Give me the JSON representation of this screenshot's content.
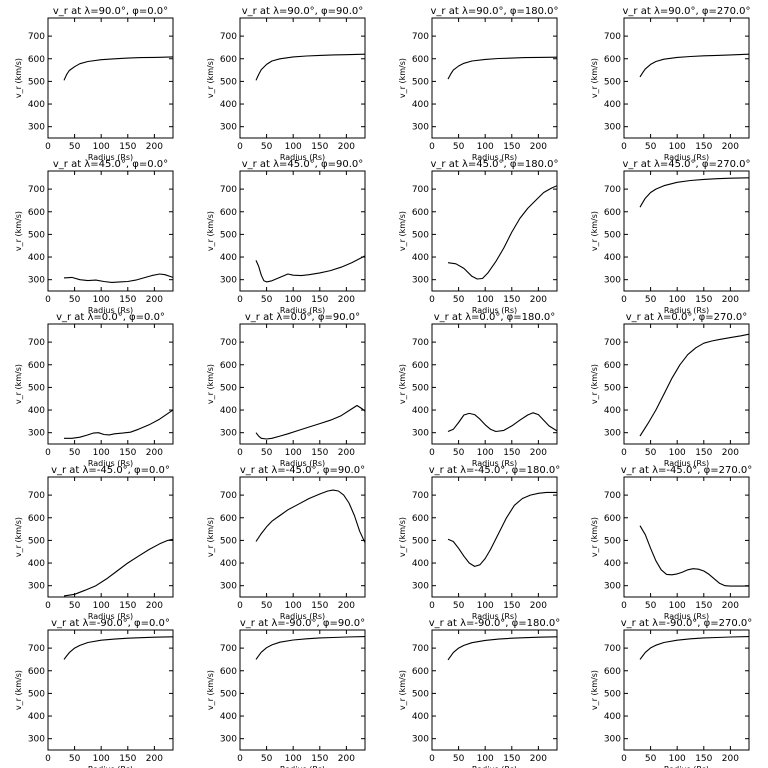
{
  "chart_data": [
    {
      "type": "line",
      "title": "v_r at λ=90.0°, φ=0.0°",
      "xlabel": "Radius (Rs)",
      "ylabel": "v_r (km/s)",
      "xlim": [
        0,
        235
      ],
      "ylim": [
        250,
        780
      ],
      "x": [
        30,
        35,
        40,
        50,
        60,
        75,
        100,
        125,
        150,
        175,
        200,
        235
      ],
      "series": [
        {
          "values": [
            505,
            530,
            548,
            565,
            578,
            588,
            596,
            600,
            603,
            605,
            606,
            608
          ]
        }
      ]
    },
    {
      "type": "line",
      "title": "v_r at λ=90.0°, φ=90.0°",
      "xlabel": "Radius (Rs)",
      "ylabel": "v_r (km/s)",
      "xlim": [
        0,
        235
      ],
      "ylim": [
        250,
        780
      ],
      "x": [
        30,
        35,
        40,
        50,
        60,
        75,
        100,
        125,
        150,
        175,
        200,
        235
      ],
      "series": [
        {
          "values": [
            505,
            530,
            552,
            575,
            590,
            600,
            608,
            612,
            615,
            617,
            618,
            620
          ]
        }
      ]
    },
    {
      "type": "line",
      "title": "v_r at λ=90.0°, φ=180.0°",
      "xlabel": "Radius (Rs)",
      "ylabel": "v_r (km/s)",
      "xlim": [
        0,
        235
      ],
      "ylim": [
        250,
        780
      ],
      "x": [
        30,
        35,
        40,
        50,
        60,
        75,
        100,
        125,
        150,
        175,
        200,
        235
      ],
      "series": [
        {
          "values": [
            510,
            532,
            550,
            568,
            580,
            590,
            597,
            601,
            603,
            605,
            606,
            607
          ]
        }
      ]
    },
    {
      "type": "line",
      "title": "v_r at λ=90.0°, φ=270.0°",
      "xlabel": "Radius (Rs)",
      "ylabel": "v_r (km/s)",
      "xlim": [
        0,
        235
      ],
      "ylim": [
        250,
        780
      ],
      "x": [
        30,
        35,
        40,
        50,
        60,
        75,
        100,
        125,
        150,
        175,
        200,
        235
      ],
      "series": [
        {
          "values": [
            520,
            538,
            555,
            575,
            588,
            598,
            606,
            610,
            613,
            615,
            617,
            620
          ]
        }
      ]
    },
    {
      "type": "line",
      "title": "v_r at λ=45.0°, φ=0.0°",
      "xlabel": "Radius (Rs)",
      "ylabel": "v_r (km/s)",
      "xlim": [
        0,
        235
      ],
      "ylim": [
        250,
        780
      ],
      "x": [
        30,
        45,
        60,
        75,
        90,
        105,
        120,
        135,
        150,
        165,
        180,
        195,
        210,
        220,
        235
      ],
      "series": [
        {
          "values": [
            308,
            310,
            300,
            296,
            298,
            292,
            288,
            290,
            292,
            298,
            308,
            318,
            325,
            322,
            310
          ]
        }
      ]
    },
    {
      "type": "line",
      "title": "v_r at λ=45.0°, φ=90.0°",
      "xlabel": "Radius (Rs)",
      "ylabel": "v_r (km/s)",
      "xlim": [
        0,
        235
      ],
      "ylim": [
        250,
        780
      ],
      "x": [
        30,
        35,
        40,
        45,
        50,
        60,
        75,
        90,
        100,
        115,
        130,
        150,
        170,
        190,
        210,
        235
      ],
      "series": [
        {
          "values": [
            385,
            360,
            320,
            295,
            290,
            295,
            310,
            325,
            320,
            318,
            322,
            330,
            340,
            355,
            375,
            405
          ]
        }
      ]
    },
    {
      "type": "line",
      "title": "v_r at λ=45.0°, φ=180.0°",
      "xlabel": "Radius (Rs)",
      "ylabel": "v_r (km/s)",
      "xlim": [
        0,
        235
      ],
      "ylim": [
        250,
        780
      ],
      "x": [
        30,
        45,
        60,
        75,
        85,
        95,
        105,
        120,
        135,
        150,
        165,
        180,
        195,
        210,
        225,
        235
      ],
      "series": [
        {
          "values": [
            375,
            370,
            350,
            315,
            303,
            305,
            330,
            380,
            440,
            510,
            570,
            615,
            650,
            685,
            705,
            715
          ]
        }
      ]
    },
    {
      "type": "line",
      "title": "v_r at λ=45.0°, φ=270.0°",
      "xlabel": "Radius (Rs)",
      "ylabel": "v_r (km/s)",
      "xlim": [
        0,
        235
      ],
      "ylim": [
        250,
        780
      ],
      "x": [
        30,
        35,
        40,
        50,
        60,
        75,
        100,
        125,
        150,
        175,
        200,
        235
      ],
      "series": [
        {
          "values": [
            620,
            640,
            660,
            685,
            700,
            715,
            730,
            738,
            743,
            746,
            748,
            750
          ]
        }
      ]
    },
    {
      "type": "line",
      "title": "v_r at λ=0.0°, φ=0.0°",
      "xlabel": "Radius (Rs)",
      "ylabel": "v_r (km/s)",
      "xlim": [
        0,
        235
      ],
      "ylim": [
        250,
        780
      ],
      "x": [
        30,
        45,
        60,
        75,
        85,
        95,
        105,
        115,
        125,
        140,
        155,
        170,
        190,
        210,
        235
      ],
      "series": [
        {
          "values": [
            275,
            275,
            280,
            290,
            298,
            300,
            292,
            290,
            295,
            298,
            302,
            315,
            335,
            360,
            400
          ]
        }
      ]
    },
    {
      "type": "line",
      "title": "v_r at λ=0.0°, φ=90.0°",
      "xlabel": "Radius (Rs)",
      "ylabel": "v_r (km/s)",
      "xlim": [
        0,
        235
      ],
      "ylim": [
        250,
        780
      ],
      "x": [
        30,
        35,
        40,
        50,
        60,
        75,
        90,
        110,
        130,
        150,
        170,
        190,
        210,
        220,
        230,
        235
      ],
      "series": [
        {
          "values": [
            300,
            285,
            275,
            272,
            275,
            285,
            295,
            310,
            325,
            340,
            355,
            375,
            405,
            420,
            405,
            395
          ]
        }
      ]
    },
    {
      "type": "line",
      "title": "v_r at λ=0.0°, φ=180.0°",
      "xlabel": "Radius (Rs)",
      "ylabel": "v_r (km/s)",
      "xlim": [
        0,
        235
      ],
      "ylim": [
        250,
        780
      ],
      "x": [
        30,
        40,
        50,
        60,
        70,
        80,
        90,
        100,
        110,
        120,
        135,
        150,
        165,
        180,
        190,
        200,
        210,
        220,
        235
      ],
      "series": [
        {
          "values": [
            305,
            315,
            345,
            378,
            385,
            380,
            360,
            335,
            315,
            305,
            310,
            330,
            355,
            378,
            388,
            380,
            355,
            330,
            308
          ]
        }
      ]
    },
    {
      "type": "line",
      "title": "v_r at λ=0.0°, φ=270.0°",
      "xlabel": "Radius (Rs)",
      "ylabel": "v_r (km/s)",
      "xlim": [
        0,
        235
      ],
      "ylim": [
        250,
        780
      ],
      "x": [
        30,
        45,
        60,
        75,
        90,
        105,
        120,
        135,
        150,
        165,
        180,
        200,
        220,
        235
      ],
      "series": [
        {
          "values": [
            285,
            340,
            400,
            470,
            540,
            600,
            645,
            675,
            695,
            705,
            712,
            720,
            728,
            735
          ]
        }
      ]
    },
    {
      "type": "line",
      "title": "v_r at λ=-45.0°, φ=0.0°",
      "xlabel": "Radius (Rs)",
      "ylabel": "v_r (km/s)",
      "xlim": [
        0,
        235
      ],
      "ylim": [
        250,
        780
      ],
      "x": [
        30,
        50,
        70,
        90,
        110,
        130,
        150,
        170,
        190,
        210,
        225,
        235
      ],
      "series": [
        {
          "values": [
            255,
            262,
            280,
            300,
            330,
            365,
            400,
            430,
            460,
            485,
            500,
            505
          ]
        }
      ]
    },
    {
      "type": "line",
      "title": "v_r at λ=-45.0°, φ=90.0°",
      "xlabel": "Radius (Rs)",
      "ylabel": "v_r (km/s)",
      "xlim": [
        0,
        235
      ],
      "ylim": [
        250,
        780
      ],
      "x": [
        30,
        40,
        50,
        60,
        75,
        90,
        110,
        130,
        150,
        165,
        175,
        185,
        195,
        205,
        215,
        225,
        235
      ],
      "series": [
        {
          "values": [
            495,
            530,
            560,
            585,
            610,
            635,
            660,
            685,
            705,
            718,
            722,
            718,
            700,
            665,
            610,
            540,
            490
          ]
        }
      ]
    },
    {
      "type": "line",
      "title": "v_r at λ=-45.0°, φ=180.0°",
      "xlabel": "Radius (Rs)",
      "ylabel": "v_r (km/s)",
      "xlim": [
        0,
        235
      ],
      "ylim": [
        250,
        780
      ],
      "x": [
        30,
        40,
        50,
        60,
        70,
        80,
        90,
        100,
        110,
        125,
        140,
        155,
        170,
        185,
        200,
        215,
        235
      ],
      "series": [
        {
          "values": [
            505,
            495,
            465,
            430,
            400,
            385,
            392,
            420,
            460,
            530,
            600,
            655,
            685,
            700,
            708,
            712,
            712
          ]
        }
      ]
    },
    {
      "type": "line",
      "title": "v_r at λ=-45.0°, φ=270.0°",
      "xlabel": "Radius (Rs)",
      "ylabel": "v_r (km/s)",
      "xlim": [
        0,
        235
      ],
      "ylim": [
        250,
        780
      ],
      "x": [
        30,
        40,
        50,
        60,
        70,
        80,
        90,
        100,
        110,
        120,
        130,
        140,
        150,
        160,
        170,
        180,
        190,
        200,
        215,
        235
      ],
      "series": [
        {
          "values": [
            565,
            525,
            465,
            410,
            370,
            350,
            348,
            352,
            360,
            370,
            375,
            373,
            365,
            350,
            330,
            310,
            300,
            298,
            298,
            298
          ]
        }
      ]
    },
    {
      "type": "line",
      "title": "v_r at λ=-90.0°, φ=0.0°",
      "xlabel": "Radius (Rs)",
      "ylabel": "v_r (km/s)",
      "xlim": [
        0,
        235
      ],
      "ylim": [
        250,
        780
      ],
      "x": [
        30,
        35,
        40,
        50,
        60,
        75,
        100,
        125,
        150,
        175,
        200,
        235
      ],
      "series": [
        {
          "values": [
            650,
            665,
            680,
            700,
            712,
            725,
            735,
            740,
            744,
            746,
            748,
            750
          ]
        }
      ]
    },
    {
      "type": "line",
      "title": "v_r at λ=-90.0°, φ=90.0°",
      "xlabel": "Radius (Rs)",
      "ylabel": "v_r (km/s)",
      "xlim": [
        0,
        235
      ],
      "ylim": [
        250,
        780
      ],
      "x": [
        30,
        35,
        40,
        50,
        60,
        75,
        100,
        125,
        150,
        175,
        200,
        235
      ],
      "series": [
        {
          "values": [
            650,
            666,
            682,
            702,
            714,
            726,
            736,
            741,
            745,
            747,
            749,
            751
          ]
        }
      ]
    },
    {
      "type": "line",
      "title": "v_r at λ=-90.0°, φ=180.0°",
      "xlabel": "Radius (Rs)",
      "ylabel": "v_r (km/s)",
      "xlim": [
        0,
        235
      ],
      "ylim": [
        250,
        780
      ],
      "x": [
        30,
        35,
        40,
        50,
        60,
        75,
        100,
        125,
        150,
        175,
        200,
        235
      ],
      "series": [
        {
          "values": [
            648,
            664,
            680,
            700,
            712,
            724,
            734,
            740,
            744,
            746,
            748,
            750
          ]
        }
      ]
    },
    {
      "type": "line",
      "title": "v_r at λ=-90.0°, φ=270.0°",
      "xlabel": "Radius (Rs)",
      "ylabel": "v_r (km/s)",
      "xlim": [
        0,
        235
      ],
      "ylim": [
        250,
        780
      ],
      "x": [
        30,
        35,
        40,
        50,
        60,
        75,
        100,
        125,
        150,
        175,
        200,
        235
      ],
      "series": [
        {
          "values": [
            650,
            665,
            681,
            701,
            713,
            725,
            735,
            741,
            745,
            747,
            749,
            751
          ]
        }
      ]
    }
  ],
  "axes": {
    "xticks": [
      0,
      50,
      100,
      150,
      200
    ],
    "yticks": [
      300,
      400,
      500,
      600,
      700
    ],
    "line_color": "#000000"
  }
}
